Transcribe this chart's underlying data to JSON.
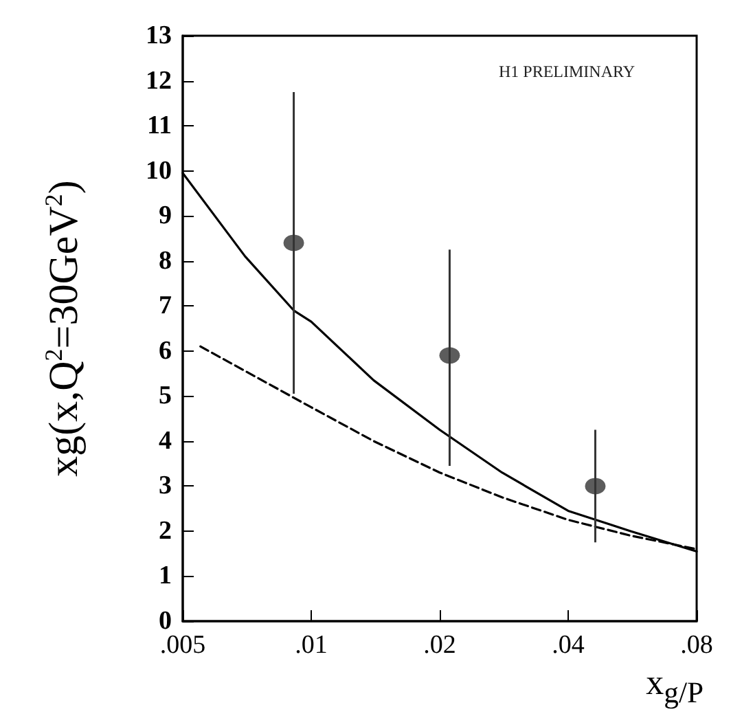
{
  "chart_data": {
    "type": "scatter",
    "xlabel": "x$_{g/P}$",
    "ylabel": "xg(x,Q$^{2}$=30GeV$^{2}$)",
    "annotations": [
      "H1 PRELIMINARY"
    ],
    "log": "x",
    "xlim": [
      0.005,
      0.08
    ],
    "xticks": [
      {
        "value": 0.005,
        "label": ".005"
      },
      {
        "value": 0.01,
        "label": ".01"
      },
      {
        "value": 0.02,
        "label": ".02"
      },
      {
        "value": 0.04,
        "label": ".04"
      },
      {
        "value": 0.08,
        "label": ".08"
      }
    ],
    "ylim": [
      0,
      13
    ],
    "yticks": [
      0,
      1,
      2,
      3,
      4,
      5,
      6,
      7,
      8,
      9,
      10,
      11,
      12,
      13
    ],
    "grid": false,
    "series": [
      {
        "color": "#333333",
        "marker": "circle",
        "x": [
          0.0091,
          0.0211,
          0.0463
        ],
        "values": [
          8.4,
          5.9,
          3.0
        ],
        "errors": [
          [
            5.05,
            11.75
          ],
          [
            3.45,
            8.25
          ],
          [
            1.75,
            4.25
          ]
        ]
      },
      {
        "type": "line",
        "color": "#000000",
        "line_style": "solid",
        "marker": "none",
        "x": [
          0.005,
          0.007,
          0.0091,
          0.01,
          0.014,
          0.02,
          0.028,
          0.04,
          0.056,
          0.08
        ],
        "values": [
          9.95,
          8.1,
          6.9,
          6.65,
          5.35,
          4.25,
          3.3,
          2.45,
          2.0,
          1.55
        ]
      },
      {
        "type": "line",
        "color": "#000000",
        "line_style": "dashed",
        "marker": "none",
        "x": [
          0.0055,
          0.01,
          0.014,
          0.02,
          0.028,
          0.04,
          0.056,
          0.08
        ],
        "values": [
          6.1,
          4.75,
          4.0,
          3.3,
          2.75,
          2.25,
          1.9,
          1.6
        ]
      }
    ]
  }
}
